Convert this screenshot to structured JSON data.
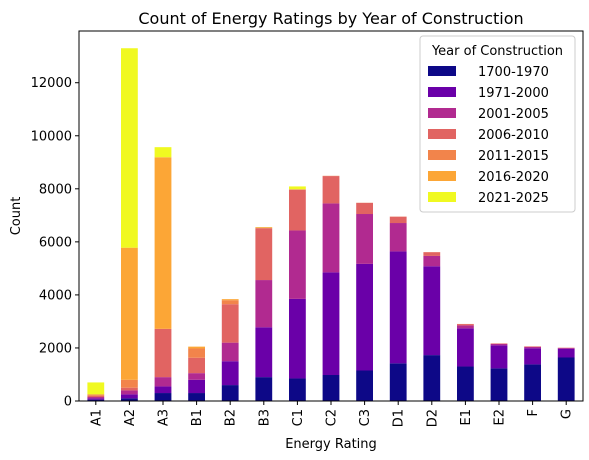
{
  "chart_data": {
    "type": "bar",
    "stacked": true,
    "title": "Count of Energy Ratings by Year of Construction",
    "xlabel": "Energy Rating",
    "ylabel": "Count",
    "ylim": [
      0,
      13950
    ],
    "yticks": [
      0,
      2000,
      4000,
      6000,
      8000,
      10000,
      12000
    ],
    "categories": [
      "A1",
      "A2",
      "A3",
      "B1",
      "B2",
      "B3",
      "C1",
      "C2",
      "C3",
      "D1",
      "D2",
      "E1",
      "E2",
      "F",
      "G"
    ],
    "legend": {
      "title": "Year of Construction",
      "position": "top-right"
    },
    "series": [
      {
        "name": "1700-1970",
        "color": "#0d0887",
        "values": [
          50,
          100,
          300,
          300,
          600,
          900,
          850,
          980,
          1150,
          1420,
          1730,
          1300,
          1230,
          1380,
          1640
        ]
      },
      {
        "name": "1971-2000",
        "color": "#6a00a8",
        "values": [
          50,
          150,
          250,
          500,
          900,
          1880,
          3000,
          3870,
          4020,
          4220,
          3350,
          1440,
          870,
          610,
          330
        ]
      },
      {
        "name": "2001-2005",
        "color": "#b12a90",
        "values": [
          50,
          150,
          350,
          250,
          700,
          1780,
          2580,
          2600,
          1880,
          1070,
          390,
          110,
          50,
          50,
          30
        ]
      },
      {
        "name": "2006-2010",
        "color": "#e16462",
        "values": [
          50,
          100,
          1820,
          580,
          1450,
          1950,
          1540,
          1030,
          420,
          240,
          140,
          50,
          20,
          20,
          10
        ]
      },
      {
        "name": "2011-2015",
        "color": "#f2844b",
        "values": [
          50,
          300,
          0,
          350,
          150,
          30,
          10,
          10,
          5,
          5,
          5,
          5,
          0,
          0,
          0
        ]
      },
      {
        "name": "2016-2020",
        "color": "#fca636",
        "values": [
          0,
          4980,
          6470,
          70,
          40,
          10,
          0,
          0,
          0,
          0,
          0,
          0,
          0,
          0,
          0
        ]
      },
      {
        "name": "2021-2025",
        "color": "#f0f921",
        "values": [
          450,
          7520,
          380,
          0,
          0,
          10,
          110,
          0,
          0,
          0,
          0,
          0,
          0,
          0,
          0
        ]
      }
    ]
  }
}
